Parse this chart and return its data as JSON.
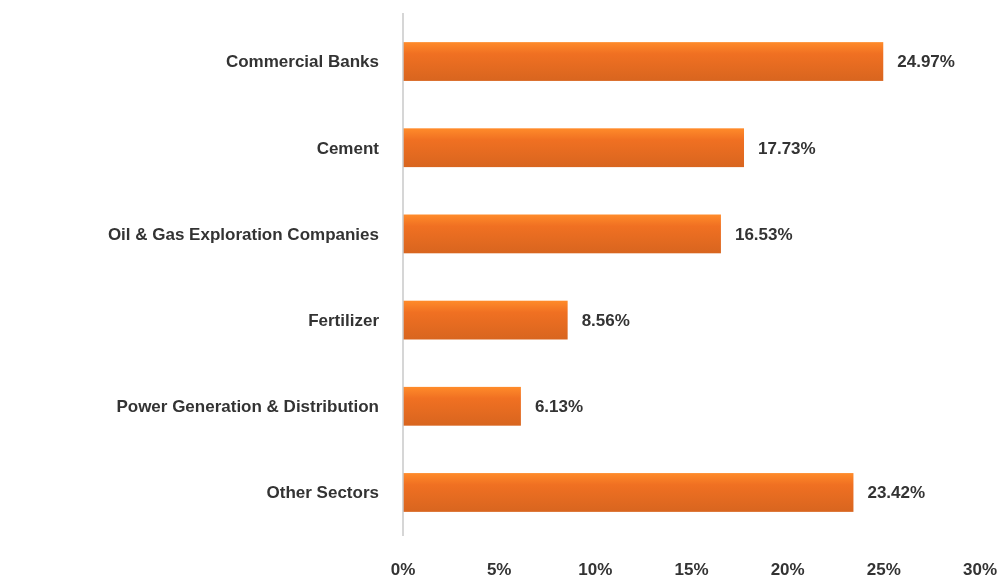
{
  "chart_data": {
    "type": "bar",
    "orientation": "horizontal",
    "categories": [
      "Commercial Banks",
      "Cement",
      "Oil & Gas Exploration Companies",
      "Fertilizer",
      "Power Generation & Distribution",
      "Other Sectors"
    ],
    "values": [
      24.97,
      17.73,
      16.53,
      8.56,
      6.13,
      23.42
    ],
    "value_labels": [
      "24.97%",
      "17.73%",
      "16.53%",
      "8.56%",
      "6.13%",
      "23.42%"
    ],
    "color": "#f07022",
    "xlim": [
      0,
      30
    ],
    "xticks": [
      {
        "value": 0,
        "label": "0%"
      },
      {
        "value": 5,
        "label": "5%"
      },
      {
        "value": 10,
        "label": "10%"
      },
      {
        "value": 15,
        "label": "15%"
      },
      {
        "value": 20,
        "label": "20%"
      },
      {
        "value": 25,
        "label": "25%"
      },
      {
        "value": 30,
        "label": "30%"
      }
    ],
    "data_labels": true
  }
}
